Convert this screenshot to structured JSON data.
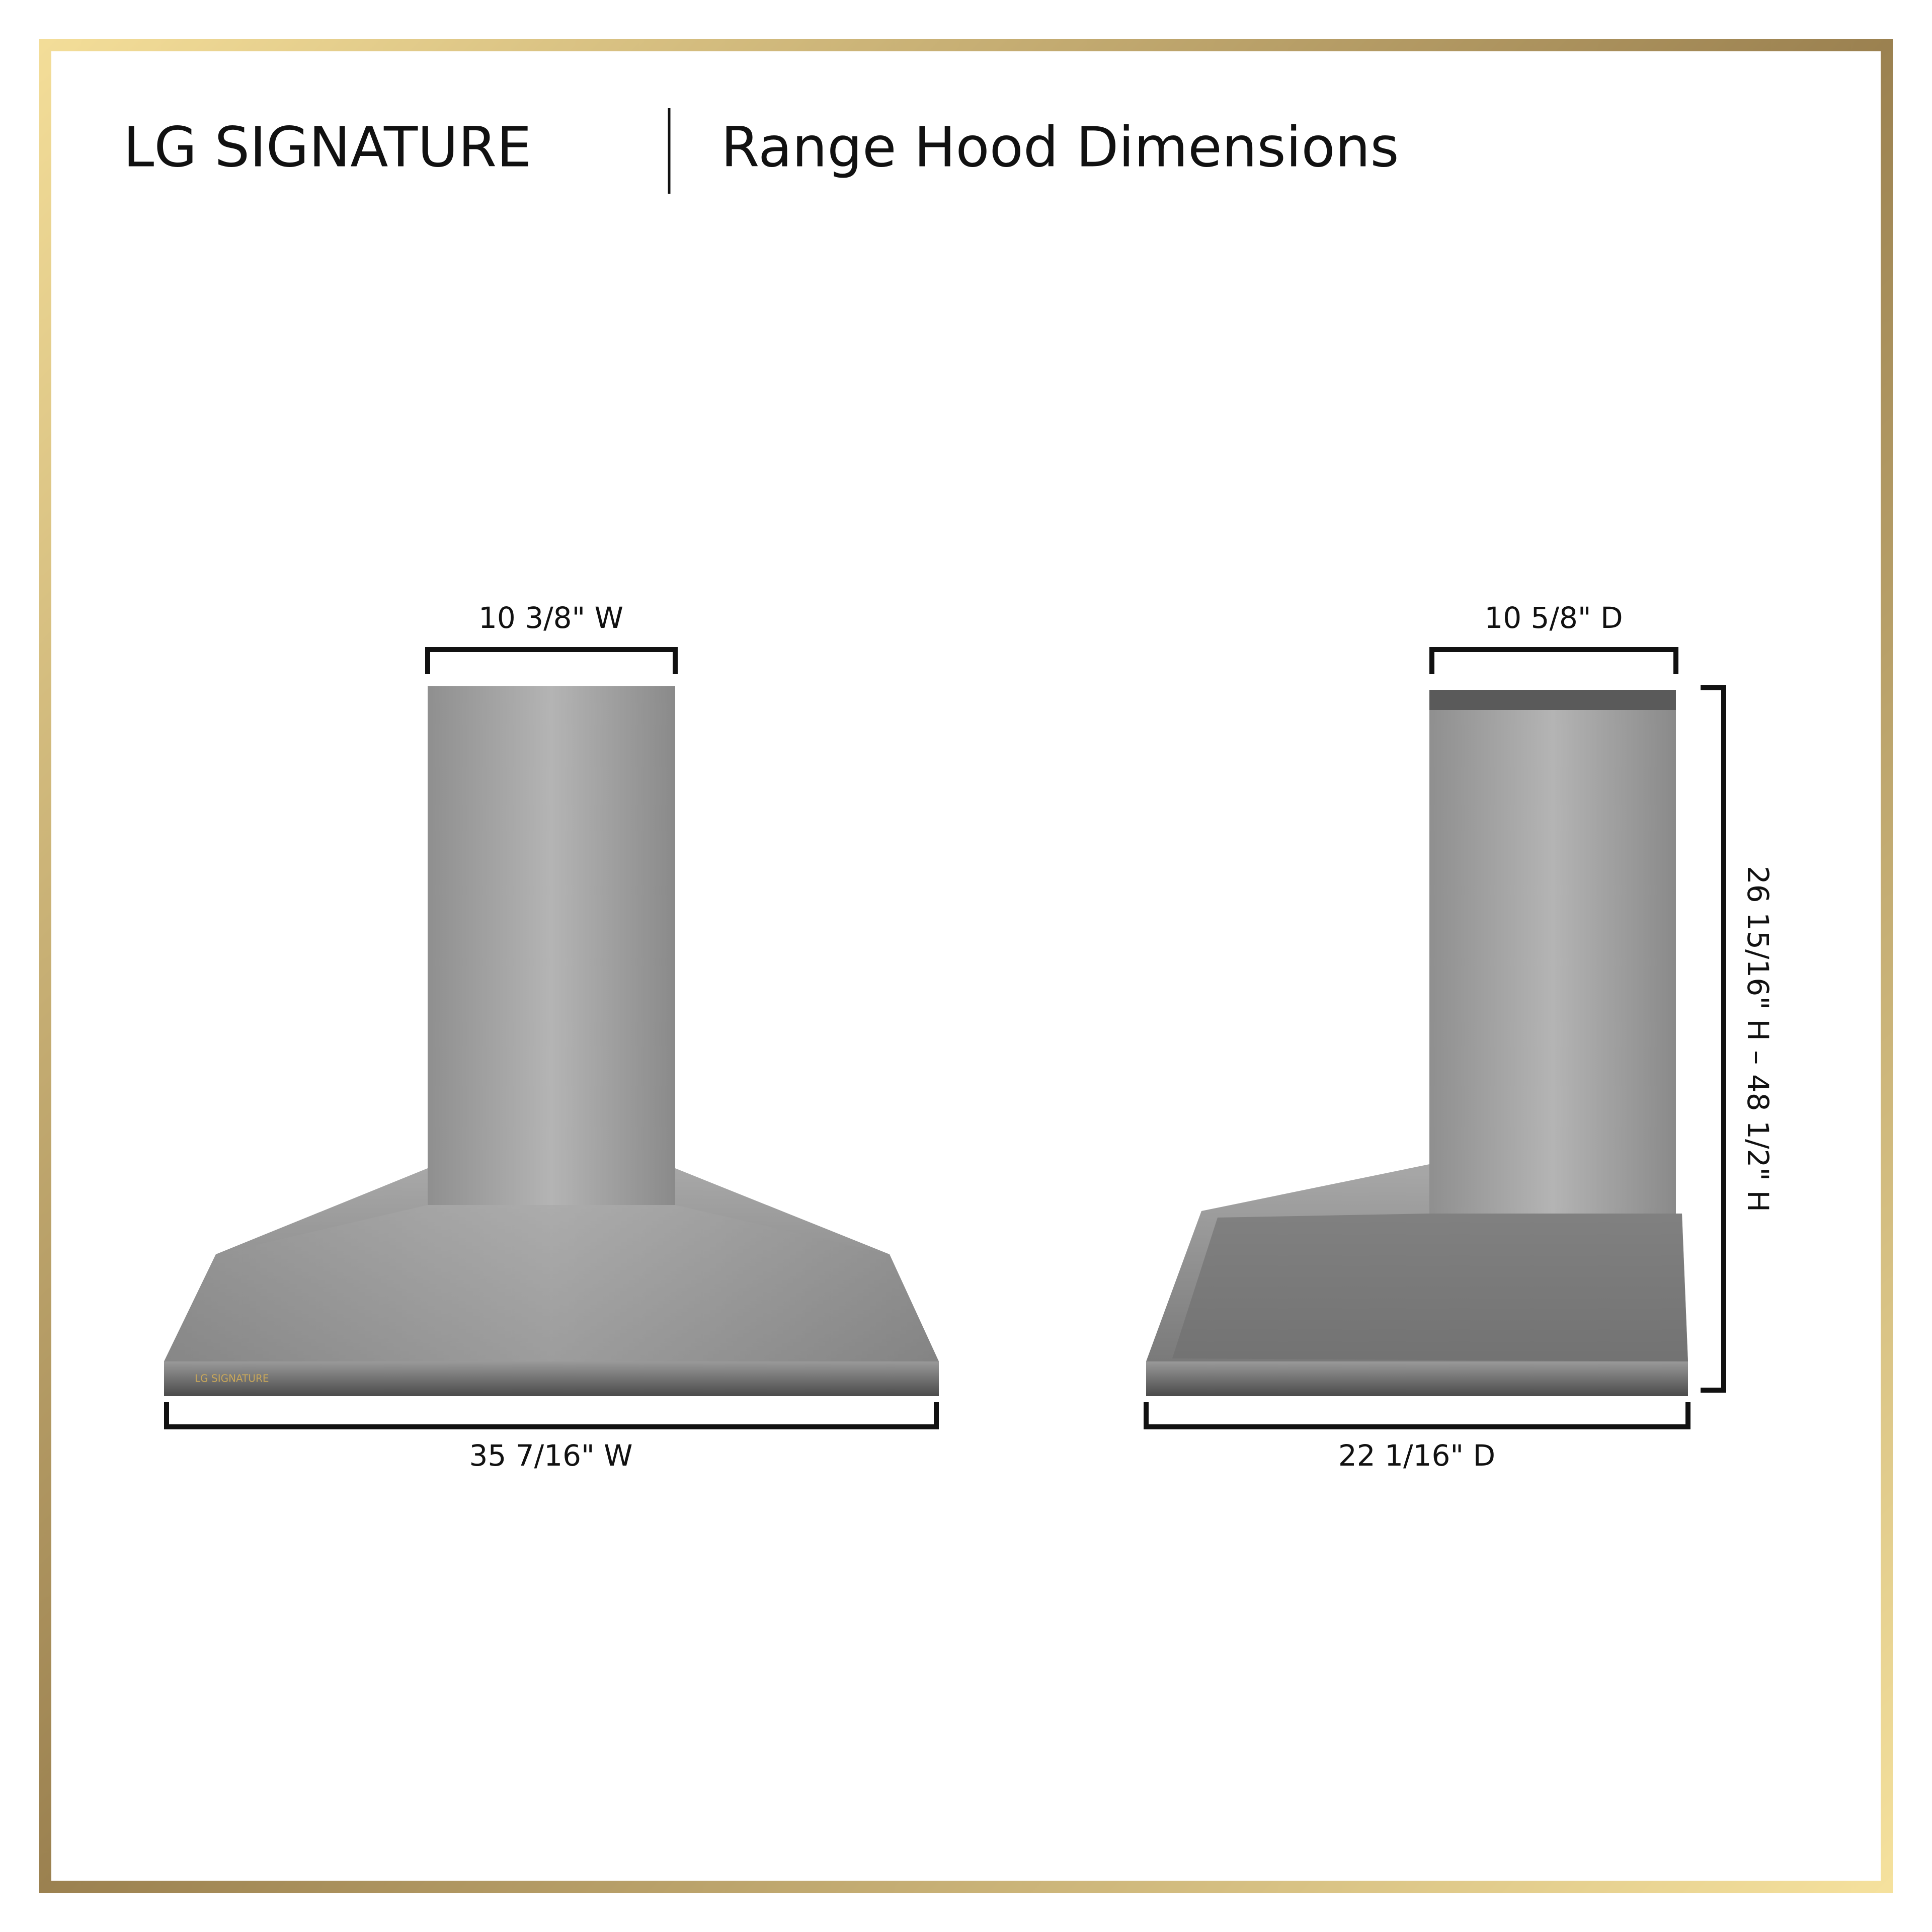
{
  "header": {
    "brand": "LG SIGNATURE",
    "title": "Range Hood Dimensions"
  },
  "front_view": {
    "panel_logo": "LG SIGNATURE",
    "top_width": "10 3/8\" W",
    "bottom_width": "35 7/16\" W"
  },
  "side_view": {
    "top_depth": "10 5/8\" D",
    "bottom_depth": "22 1/16\" D",
    "height": "26 15/16\" H – 48 1/2\" H"
  }
}
